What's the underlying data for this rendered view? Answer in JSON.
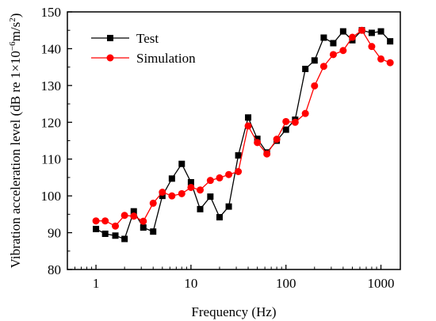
{
  "chart_data": {
    "type": "line",
    "xscale": "log",
    "xlim": [
      0.5,
      1600
    ],
    "ylim": [
      80,
      150
    ],
    "x_ticks": [
      1,
      10,
      100,
      1000
    ],
    "y_ticks": [
      80,
      90,
      100,
      110,
      120,
      130,
      140,
      150
    ],
    "xlabel": "Frequency (Hz)",
    "ylabel_prefix": "Vibration acceleration level (dB re 1×10",
    "ylabel_exp1": "−6",
    "ylabel_mid": "m/s",
    "ylabel_exp2": "2",
    "ylabel_suffix": ")",
    "grid": false,
    "legend_position": "top-left",
    "x": [
      1,
      1.25,
      1.6,
      2,
      2.5,
      3.15,
      4,
      5,
      6.3,
      8,
      10,
      12.5,
      16,
      20,
      25,
      31.5,
      40,
      50,
      63,
      80,
      100,
      125,
      160,
      200,
      250,
      315,
      400,
      500,
      630,
      800,
      1000,
      1250
    ],
    "series": [
      {
        "name": "Test",
        "color": "#000000",
        "marker": "square",
        "values": [
          91.0,
          89.7,
          89.2,
          88.3,
          95.8,
          91.4,
          90.3,
          100.0,
          104.7,
          108.7,
          103.7,
          96.4,
          99.8,
          94.2,
          97.1,
          111.0,
          121.3,
          115.5,
          111.8,
          115.0,
          118.0,
          120.7,
          134.5,
          136.8,
          143.0,
          141.5,
          144.7,
          142.3,
          145.0,
          144.3,
          144.7,
          142.0
        ]
      },
      {
        "name": "Simulation",
        "color": "#ff0000",
        "marker": "circle",
        "values": [
          93.2,
          93.2,
          91.8,
          94.7,
          94.5,
          93.1,
          98.0,
          101.0,
          100.0,
          100.6,
          102.3,
          101.6,
          104.2,
          104.9,
          105.8,
          106.6,
          119.0,
          114.5,
          111.4,
          115.4,
          120.2,
          120.0,
          122.4,
          129.9,
          135.2,
          138.4,
          139.5,
          143.1,
          145.0,
          140.6,
          137.2,
          136.2
        ]
      }
    ]
  }
}
